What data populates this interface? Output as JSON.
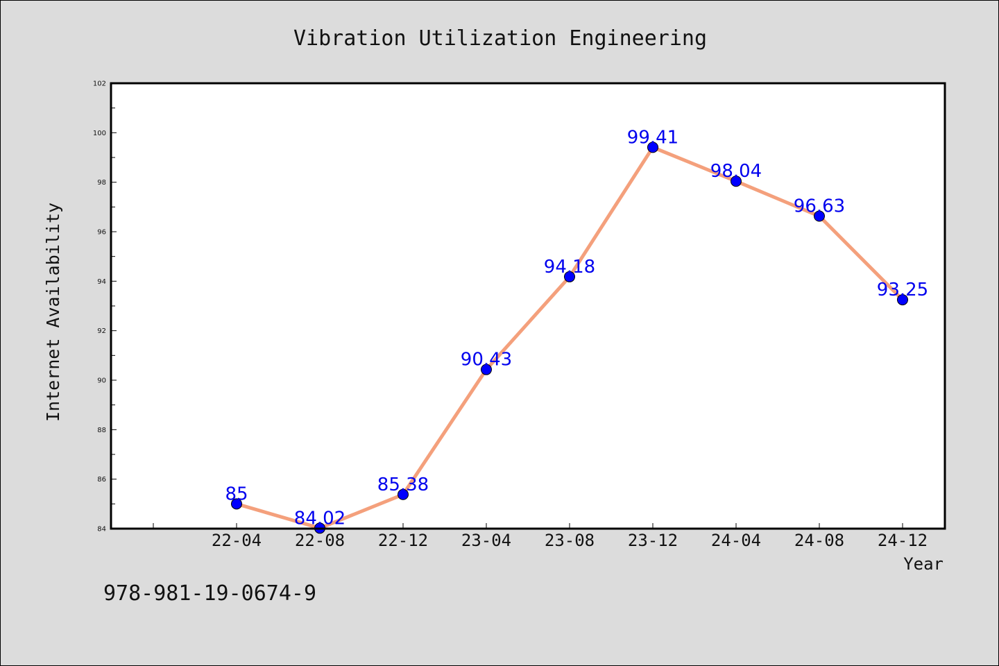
{
  "chart_data": {
    "type": "line",
    "title": "Vibration Utilization Engineering",
    "xlabel": "Year",
    "ylabel": "Internet Availability",
    "categories": [
      "22-04",
      "22-08",
      "22-12",
      "23-04",
      "23-08",
      "23-12",
      "24-04",
      "24-08",
      "24-12"
    ],
    "series": [
      {
        "values": [
          85,
          84.02,
          85.38,
          90.43,
          94.18,
          99.41,
          98.04,
          96.63,
          93.25
        ],
        "data_labels": [
          "85",
          "84.02",
          "85.38",
          "90.43",
          "94.18",
          "99.41",
          "98.04",
          "96.63",
          "93.25"
        ],
        "line_color": "#f4a07c",
        "marker_color": "#0000ff"
      }
    ],
    "ylim": [
      84,
      102
    ],
    "yticks": [
      "84",
      "86",
      "88",
      "90",
      "92",
      "94",
      "96",
      "98",
      "100",
      "102"
    ],
    "grid": false,
    "legend": "none"
  },
  "footnote": "978-981-19-0674-9"
}
